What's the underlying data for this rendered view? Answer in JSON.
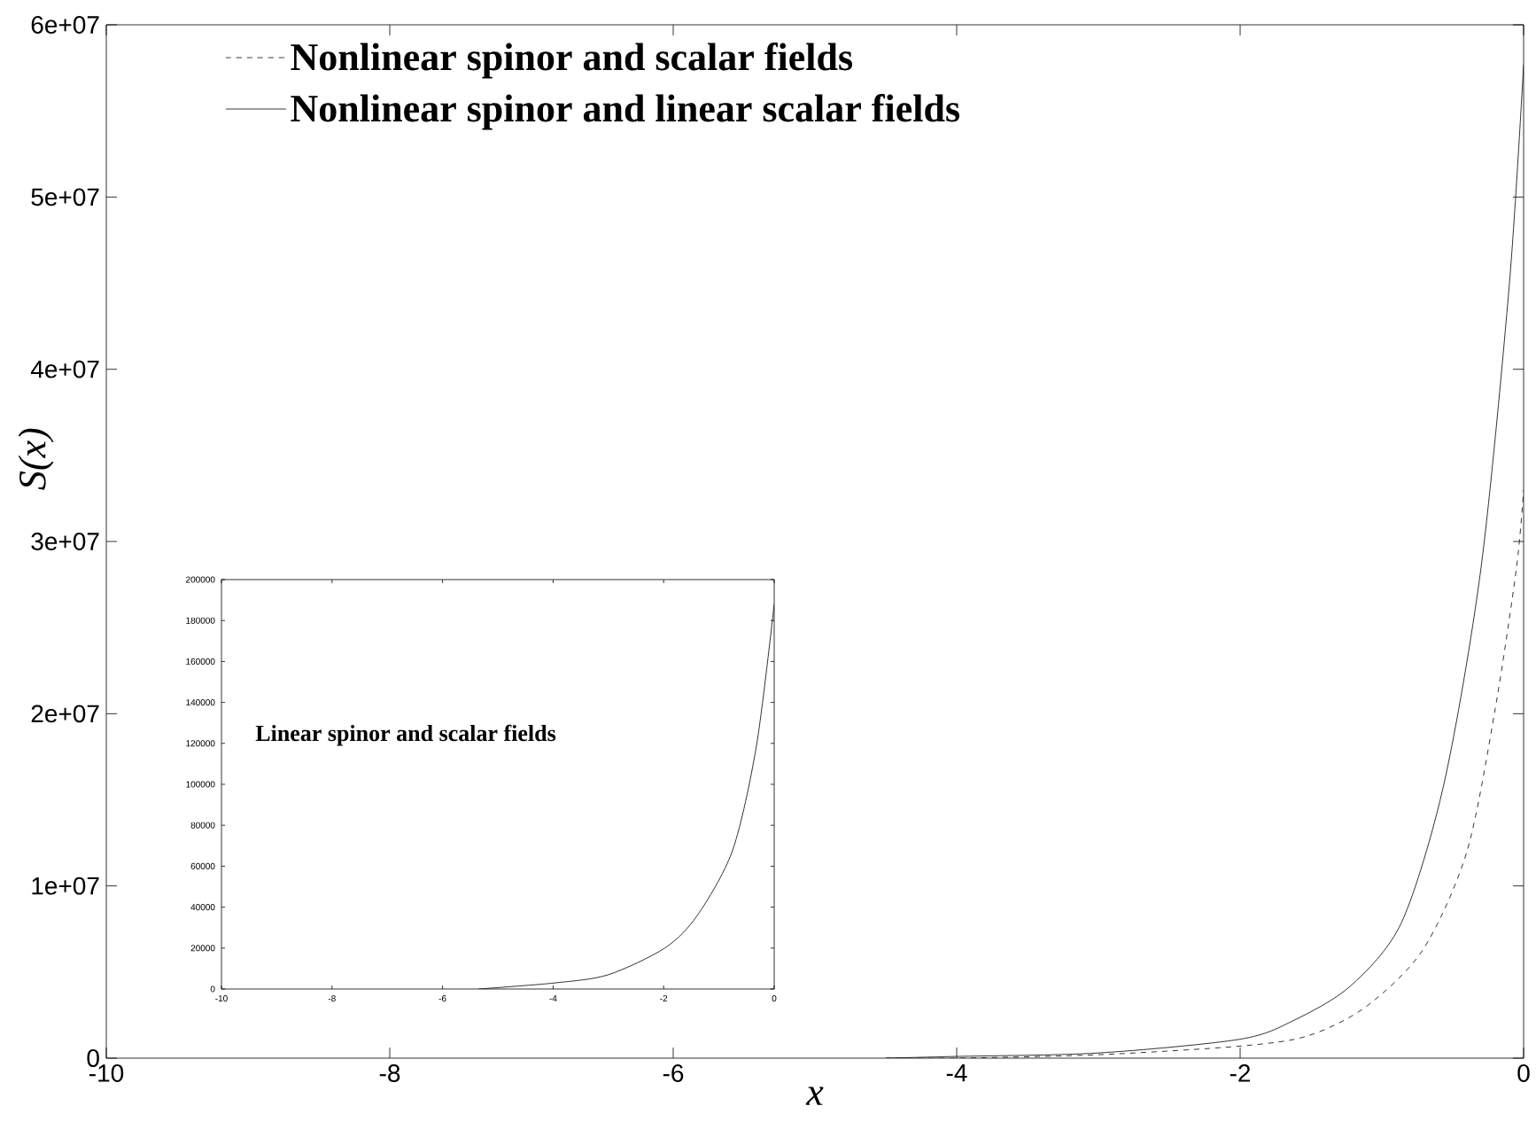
{
  "chart_data": [
    {
      "type": "line",
      "xlabel": "x",
      "ylabel": "S(x)",
      "xlim": [
        -10,
        0
      ],
      "ylim": [
        0,
        60000000
      ],
      "xticks": [
        -10,
        -8,
        -6,
        -4,
        -2,
        0
      ],
      "yticks": [
        0,
        {
          "value": 10000000,
          "label": "1e+07"
        },
        {
          "value": 20000000,
          "label": "2e+07"
        },
        {
          "value": 30000000,
          "label": "3e+07"
        },
        {
          "value": 40000000,
          "label": "4e+07"
        },
        {
          "value": 50000000,
          "label": "5e+07"
        },
        {
          "value": 60000000,
          "label": "6e+07"
        }
      ],
      "legend": "top left",
      "series": [
        {
          "name": "Nonlinear spinor and scalar fields",
          "color": "#000000",
          "line_style": "dashed",
          "x": [
            -4.5,
            -4,
            -3,
            -2,
            -1.52,
            -1.11,
            -0.71,
            -0.4,
            -0.2,
            -0.05,
            0
          ],
          "values": [
            0,
            0,
            200000,
            700000,
            1300000,
            3000000,
            6300000,
            12000000,
            20300000,
            28500000,
            33000000
          ]
        },
        {
          "name": "Nonlinear spinor and linear scalar fields",
          "color": "#000000",
          "line_style": "solid",
          "x": [
            -4.5,
            -4,
            -3,
            -2,
            -1.62,
            -1.22,
            -0.86,
            -0.56,
            -0.3,
            -0.1,
            0
          ],
          "values": [
            0,
            100000,
            300000,
            1100000,
            2200000,
            4200000,
            7900000,
            16000000,
            28500000,
            45000000,
            57700000
          ]
        }
      ]
    },
    {
      "type": "line",
      "xlim": [
        -10,
        0
      ],
      "ylim": [
        0,
        200000
      ],
      "xticks": [
        -10,
        -8,
        -6,
        -4,
        -2,
        0
      ],
      "yticks": [
        0,
        20000,
        40000,
        60000,
        80000,
        100000,
        120000,
        140000,
        160000,
        180000,
        200000
      ],
      "annotations": [
        "Linear spinor and scalar fields"
      ],
      "series": [
        {
          "color": "#000000",
          "line_style": "solid",
          "x": [
            -5.35,
            -3.96,
            -3,
            -1.98,
            -1.39,
            -0.75,
            -0.32,
            0
          ],
          "values": [
            0,
            3000,
            7000,
            20000,
            36000,
            68000,
            119000,
            188000
          ]
        }
      ]
    }
  ]
}
